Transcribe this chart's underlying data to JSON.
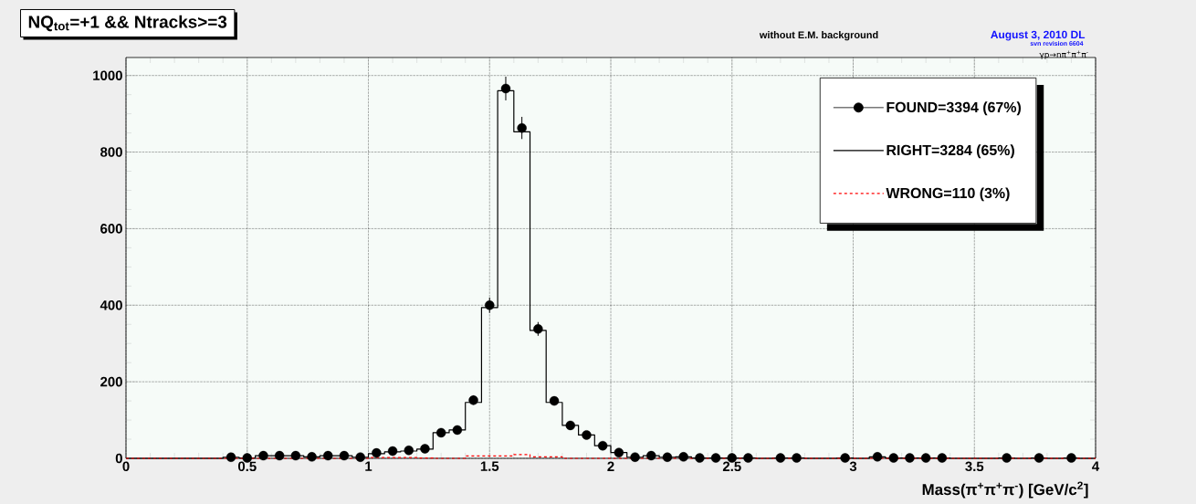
{
  "chart_data": {
    "type": "histogram",
    "title": "NQ$_{tot}$=+1 && Ntracks>=3",
    "subtitle": "without E.M. background",
    "xlabel": "Mass(π$^{+}$π$^{+}$π$^{-}$)  [GeV/c$^{2}$]",
    "annotations": [
      "August 3, 2010 DL",
      "svn revision 6604",
      "γp→nπ$^{+}$π$^{+}$π$^{-}$"
    ],
    "bins": [
      0,
      0.0667,
      0.1333,
      0.2,
      0.2667,
      0.3333,
      0.4,
      0.4667,
      0.5333,
      0.6,
      0.6667,
      0.7333,
      0.8,
      0.8667,
      0.9333,
      1,
      1.0667,
      1.1333,
      1.2,
      1.2667,
      1.3333,
      1.4,
      1.4667,
      1.5333,
      1.6,
      1.6667,
      1.7333,
      1.8,
      1.8667,
      1.9333,
      2,
      2.0667,
      2.1333,
      2.2,
      2.2667,
      2.3333,
      2.4,
      2.4667,
      2.5333,
      2.6,
      2.6667,
      2.7333,
      2.8,
      2.8667,
      2.9333,
      3,
      3.0667,
      3.1333,
      3.2,
      3.2667,
      3.3333,
      3.4,
      3.4667,
      3.5333,
      3.6,
      3.6667,
      3.7333,
      3.8,
      3.8667,
      3.9333,
      4
    ],
    "series": [
      {
        "name": "FOUND=3394  (67%)",
        "type": "scatter",
        "marker": "circle",
        "color": "#000000",
        "x": [
          null,
          null,
          null,
          null,
          null,
          null,
          0.4333,
          0.5,
          0.5667,
          0.6333,
          0.7,
          0.7667,
          0.8333,
          0.9,
          0.9667,
          1.0333,
          1.1,
          1.1667,
          1.2333,
          1.3,
          1.3667,
          1.4333,
          1.5,
          1.5667,
          1.6333,
          1.7,
          1.7667,
          1.8333,
          1.9,
          1.9667,
          2.0333,
          2.1,
          2.1667,
          2.2333,
          2.3,
          2.3667,
          2.4333,
          2.5,
          2.5667,
          null,
          2.7,
          2.7667,
          null,
          null,
          2.9667,
          null,
          3.1,
          3.1667,
          3.2333,
          3.3,
          3.3667,
          null,
          null,
          null,
          3.6333,
          null,
          3.7667,
          null,
          3.9,
          null
        ],
        "values": [
          null,
          null,
          null,
          null,
          null,
          null,
          3,
          1,
          7,
          7,
          7,
          4,
          7,
          7,
          3,
          14,
          19,
          21,
          25,
          67,
          74,
          152,
          400,
          966,
          863,
          338,
          150,
          86,
          61,
          33,
          15,
          3,
          7,
          3,
          4,
          1,
          1,
          1,
          1,
          null,
          1,
          1,
          null,
          null,
          1,
          null,
          4,
          1,
          1,
          1,
          1,
          null,
          null,
          null,
          1,
          null,
          1,
          null,
          1,
          null
        ],
        "errors": [
          null,
          null,
          null,
          null,
          null,
          null,
          null,
          null,
          null,
          null,
          null,
          null,
          null,
          null,
          null,
          null,
          null,
          null,
          null,
          null,
          null,
          12,
          20,
          31,
          29,
          18,
          12,
          null,
          null,
          null,
          null,
          null,
          null,
          null,
          null,
          null,
          null,
          null,
          null,
          null,
          null,
          null,
          null,
          null,
          null,
          null,
          null,
          null,
          null,
          null,
          null,
          null,
          null,
          null,
          null,
          null,
          null,
          null,
          null,
          null
        ]
      },
      {
        "name": "RIGHT=3284  (65%)",
        "type": "histogram",
        "line_style": "solid",
        "color": "#000000",
        "values": [
          0,
          0,
          0,
          0,
          0,
          0,
          3,
          1,
          7,
          7,
          7,
          4,
          7,
          7,
          3,
          12,
          17,
          19,
          24,
          67,
          74,
          146,
          394,
          960,
          853,
          334,
          146,
          86,
          61,
          33,
          15,
          3,
          7,
          3,
          4,
          1,
          1,
          1,
          1,
          0,
          1,
          1,
          0,
          0,
          1,
          0,
          4,
          1,
          1,
          1,
          1,
          0,
          0,
          0,
          1,
          0,
          1,
          0,
          1,
          0
        ]
      },
      {
        "name": "WRONG=110  (3%)",
        "type": "histogram",
        "line_style": "dashed",
        "color": "#ff0000",
        "values": [
          0,
          0,
          0,
          0,
          0,
          0,
          0,
          0,
          0,
          0,
          0,
          0,
          0,
          0,
          0,
          2,
          2,
          2,
          1,
          0,
          0,
          6,
          6,
          6,
          10,
          4,
          4,
          0,
          0,
          0,
          0,
          0,
          0,
          0,
          0,
          0,
          0,
          0,
          0,
          0,
          0,
          0,
          0,
          0,
          0,
          0,
          0,
          0,
          0,
          0,
          0,
          0,
          0,
          0,
          0,
          0,
          0,
          0,
          0,
          0
        ]
      }
    ],
    "xlim": [
      0,
      4
    ],
    "ylim": [
      0,
      1047
    ],
    "xticks": [
      0,
      0.5,
      1,
      1.5,
      2,
      2.5,
      3,
      3.5,
      4
    ],
    "yticks": [
      0,
      200,
      400,
      600,
      800,
      1000
    ],
    "grid": true,
    "legend": "top right"
  }
}
